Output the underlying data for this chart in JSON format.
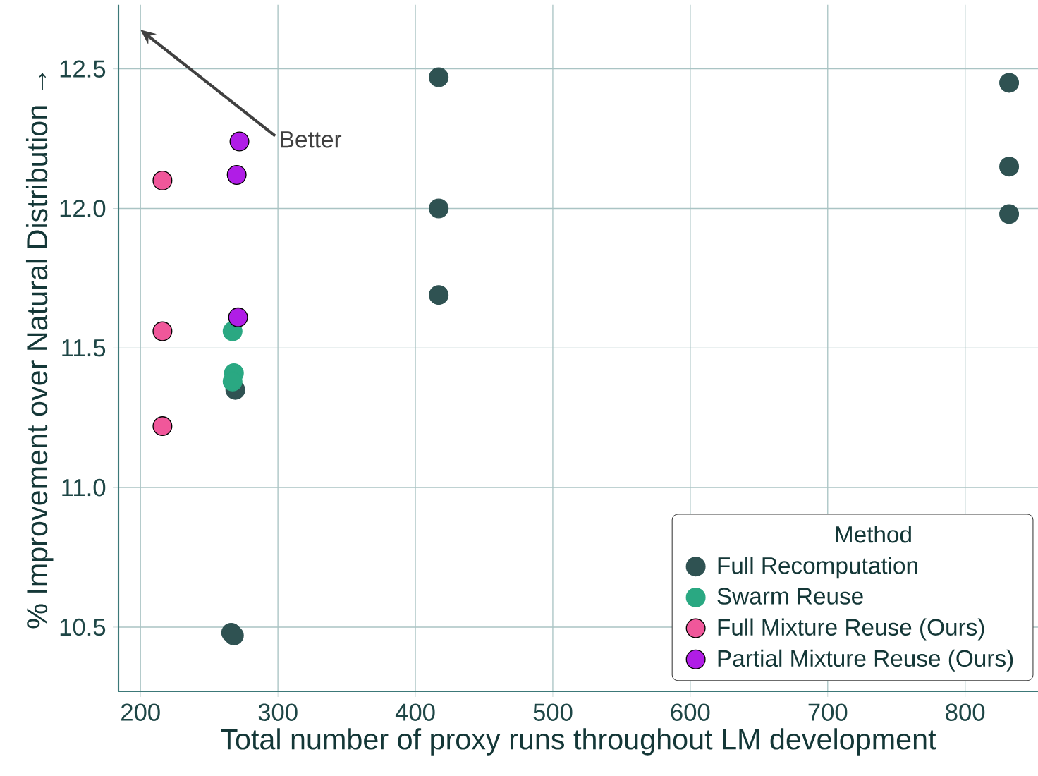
{
  "chart_data": {
    "type": "scatter",
    "xlabel": "Total number of proxy runs throughout LM development",
    "ylabel": "% Improvement over Natural Distribution →",
    "xlim": [
      184,
      853
    ],
    "ylim": [
      10.27,
      12.73
    ],
    "xticks": [
      200,
      300,
      400,
      500,
      600,
      700,
      800
    ],
    "yticks": [
      10.5,
      {
        "value": 11.0,
        "label": "11.0"
      },
      11.5,
      {
        "value": 12.0,
        "label": "12.0"
      },
      12.5
    ],
    "grid": true,
    "legend": "bottom right",
    "legend_title": "Method",
    "marker": "circle",
    "annotations": [
      "Better"
    ],
    "series": [
      {
        "name": "Full Recomputation",
        "color": "#2f5252",
        "x": [
          417,
          417,
          417,
          832,
          832,
          832,
          269,
          266,
          268
        ],
        "values": [
          12.47,
          12.0,
          11.69,
          12.45,
          12.15,
          11.98,
          11.35,
          10.48,
          10.47
        ]
      },
      {
        "name": "Swarm Reuse",
        "color": "#2aa882",
        "x": [
          267,
          268,
          267
        ],
        "values": [
          11.56,
          11.41,
          11.38
        ]
      },
      {
        "name": "Full Mixture Reuse (Ours)",
        "color": "#f0579a",
        "x": [
          216,
          216,
          216
        ],
        "values": [
          12.1,
          11.56,
          11.22
        ]
      },
      {
        "name": "Partial Mixture Reuse (Ours)",
        "color": "#b01de6",
        "x": [
          272,
          270,
          271
        ],
        "values": [
          12.24,
          12.12,
          11.61
        ]
      }
    ]
  }
}
